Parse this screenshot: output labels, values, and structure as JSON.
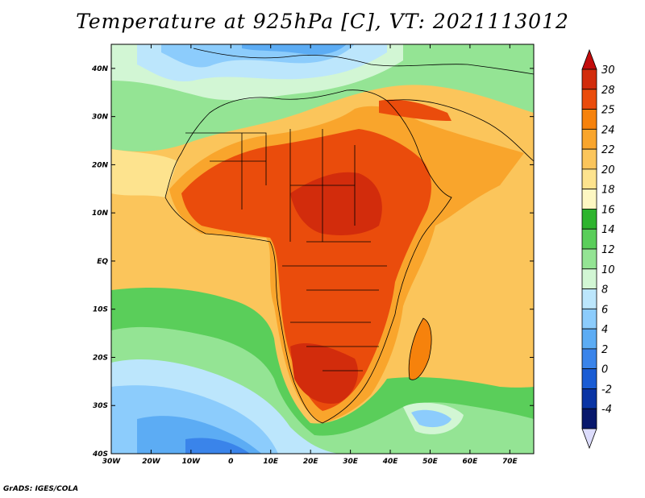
{
  "title": "Temperature at 925hPa [C], VT: 2021113012",
  "footer": "GrADS: IGES/COLA",
  "map": {
    "variable": "Temperature at 925hPa",
    "units": "C",
    "valid_time": "2021113012",
    "lon_range": [
      -30,
      76
    ],
    "lat_range": [
      -40,
      45
    ],
    "lon_ticks": [
      "30W",
      "20W",
      "10W",
      "0",
      "10E",
      "20E",
      "30E",
      "40E",
      "50E",
      "60E",
      "70E"
    ],
    "lat_ticks": [
      "40N",
      "30N",
      "20N",
      "10N",
      "EQ",
      "10S",
      "20S",
      "30S",
      "40S"
    ],
    "colorbar": {
      "levels": [
        "30",
        "28",
        "25",
        "24",
        "22",
        "20",
        "18",
        "16",
        "14",
        "12",
        "10",
        "8",
        "6",
        "4",
        "2",
        "0",
        "-2",
        "-4"
      ],
      "colors": [
        "#d22c0c",
        "#ea4c0c",
        "#f6820c",
        "#f9a52c",
        "#fbc55b",
        "#fde38e",
        "#fdf7c2",
        "#2eb42e",
        "#5ace5a",
        "#94e494",
        "#d2f6d4",
        "#bce6fc",
        "#8cccfc",
        "#5cacf4",
        "#3a84ea",
        "#1a5cd4",
        "#0a34a4",
        "#08186c"
      ],
      "top_arrow_color": "#c20c0c",
      "bottom_arrow_color": "#dcdcfc"
    }
  }
}
